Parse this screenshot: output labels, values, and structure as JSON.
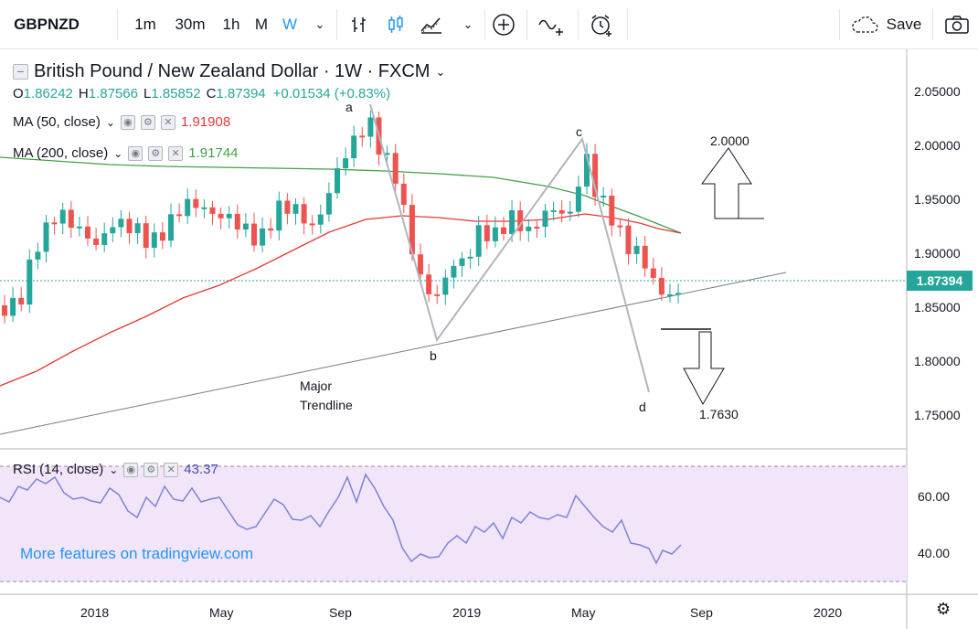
{
  "toolbar": {
    "symbol": "GBPNZD",
    "intervals": [
      "1m",
      "30m",
      "1h",
      "M",
      "W"
    ],
    "active_interval": "W",
    "save_label": "Save"
  },
  "legend": {
    "title": "British Pound / New Zealand Dollar · 1W · FXCM",
    "ohlc": {
      "o_label": "O",
      "o": "1.86242",
      "h_label": "H",
      "h": "1.87566",
      "l_label": "L",
      "l": "1.85852",
      "c_label": "C",
      "c": "1.87394",
      "change": "+0.01534 (+0.83%)"
    },
    "ma50": {
      "label": "MA (50, close)",
      "value": "1.91908"
    },
    "ma200": {
      "label": "MA (200, close)",
      "value": "1.91744"
    },
    "rsi": {
      "label": "RSI (14, close)",
      "value": "43.37"
    }
  },
  "price_axis": [
    "2.05000",
    "2.00000",
    "1.95000",
    "1.90000",
    "1.85000",
    "1.80000",
    "1.75000"
  ],
  "last_price": "1.87394",
  "rsi_axis": [
    "60.00",
    "40.00"
  ],
  "time_axis": [
    "2018",
    "May",
    "Sep",
    "2019",
    "May",
    "Sep",
    "2020"
  ],
  "annotations": {
    "a": "a",
    "b": "b",
    "c": "c",
    "d": "d",
    "target_up": "2.0000",
    "target_down": "1.7630",
    "trendline_line1": "Major",
    "trendline_line2": "Trendline"
  },
  "promo": "More features on tradingview.com",
  "colors": {
    "up": "#26a69a",
    "down": "#ef5350",
    "ma50": "#e53935",
    "ma200": "#43a047",
    "rsi": "#7b83d6",
    "rsi_band": "#f3e5f9",
    "accent": "#2196f3"
  },
  "chart_data": {
    "type": "candlestick",
    "title": "British Pound / New Zealand Dollar · 1W · FXCM",
    "ylim": [
      1.72,
      2.08
    ],
    "x_ticks": [
      "2018",
      "May",
      "Sep",
      "2019",
      "May",
      "Sep",
      "2020"
    ],
    "series": [
      {
        "name": "MA (50, close)",
        "values_start": 1.77,
        "values_end": 1.919
      },
      {
        "name": "MA (200, close)",
        "values_start": 1.99,
        "values_end": 1.917
      }
    ],
    "last_close": 1.87394,
    "rsi_last": 43.37,
    "rsi_range": [
      30,
      72
    ]
  }
}
